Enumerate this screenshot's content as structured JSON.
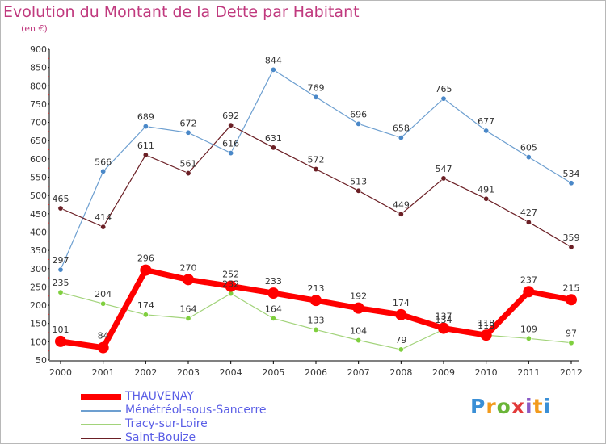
{
  "title": "Evolution du Montant de la Dette par Habitant",
  "subtitle": "(en €)",
  "logo": {
    "text": "Proxiti",
    "colors": [
      "#3a8fd6",
      "#f29a1c",
      "#6ab537",
      "#e23a3a",
      "#8a5bc6",
      "#f29a1c",
      "#3a8fd6"
    ]
  },
  "chart_data": {
    "type": "line",
    "x": [
      "2000",
      "2001",
      "2002",
      "2003",
      "2004",
      "2005",
      "2006",
      "2007",
      "2008",
      "2009",
      "2010",
      "2011",
      "2012"
    ],
    "ylim": [
      50,
      900
    ],
    "yticks": [
      50,
      100,
      150,
      200,
      250,
      300,
      350,
      400,
      450,
      500,
      550,
      600,
      650,
      700,
      750,
      800,
      850,
      900
    ],
    "grid": false,
    "legend_position": "bottom-left",
    "series": [
      {
        "name": "Ménétréol-sous-Sancerre",
        "color": "#6d9fd0",
        "values": [
          297,
          566,
          689,
          672,
          616,
          844,
          769,
          696,
          658,
          765,
          677,
          605,
          534
        ]
      },
      {
        "name": "Saint-Bouize",
        "color": "#6b1f25",
        "values": [
          465,
          414,
          611,
          561,
          692,
          631,
          572,
          513,
          449,
          547,
          491,
          427,
          359
        ]
      },
      {
        "name": "Tracy-sur-Loire",
        "color": "#a2d37a",
        "values": [
          235,
          204,
          174,
          164,
          232,
          164,
          133,
          104,
          79,
          134,
          118,
          109,
          97
        ]
      },
      {
        "name": "THAUVENAY",
        "color": "#ff0000",
        "values": [
          101,
          84,
          296,
          270,
          252,
          233,
          213,
          192,
          174,
          137,
          118,
          237,
          215
        ]
      }
    ],
    "legend_order": [
      "THAUVENAY",
      "Ménétréol-sous-Sancerre",
      "Tracy-sur-Loire",
      "Saint-Bouize"
    ]
  }
}
